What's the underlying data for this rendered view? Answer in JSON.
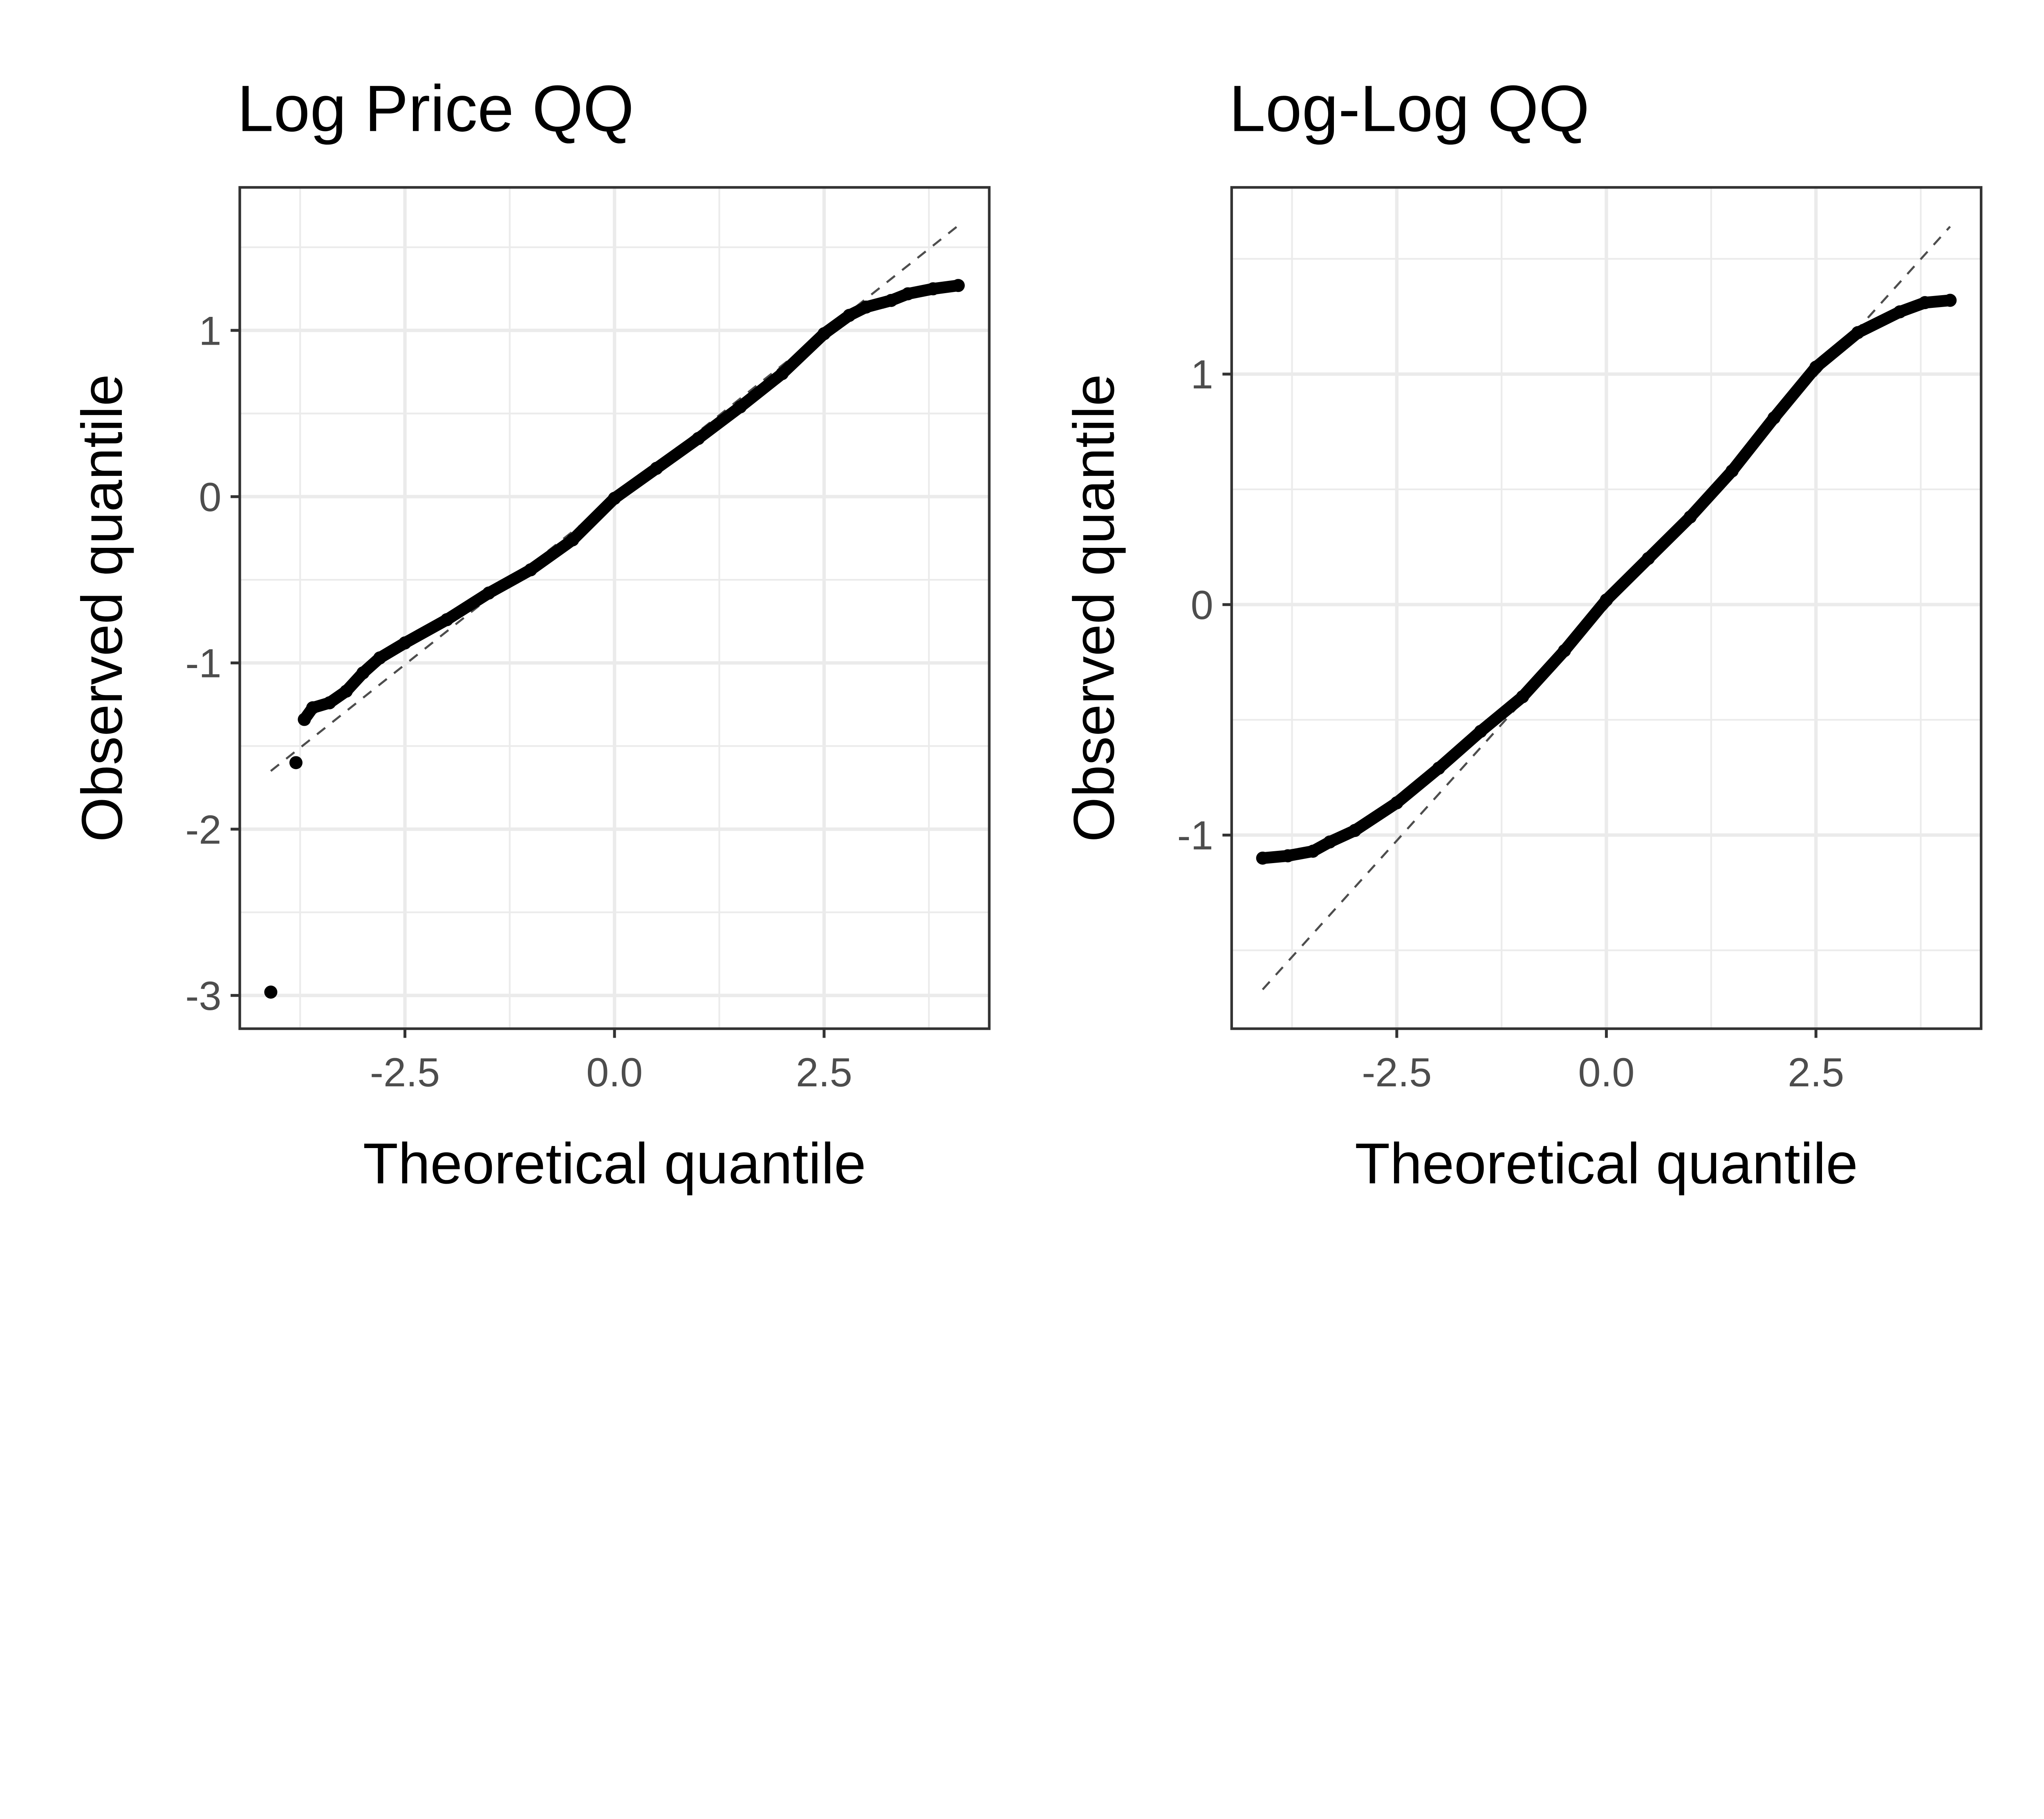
{
  "chart_data": [
    {
      "type": "scatter",
      "title": "Log Price QQ",
      "xlabel": "Theoretical quantile",
      "ylabel": "Observed quantile",
      "xlim": [
        -4.47,
        4.47
      ],
      "ylim": [
        -3.2,
        1.86
      ],
      "xticks": [
        -2.5,
        0.0,
        2.5
      ],
      "xtick_labels": [
        "-2.5",
        "0.0",
        "2.5"
      ],
      "yticks": [
        -3,
        -2,
        -1,
        0,
        1
      ],
      "ytick_labels": [
        "-3",
        "-2",
        "-1",
        "0",
        "1"
      ],
      "grid": true,
      "reference_line": {
        "style": "dashed",
        "color": "#4d4d4d",
        "x": [
          -4.1,
          4.1
        ],
        "y": [
          -1.65,
          1.63
        ]
      },
      "point_color": "#000000",
      "points": [
        [
          -4.1,
          -2.98
        ],
        [
          -3.8,
          -1.6
        ],
        [
          -3.7,
          -1.34
        ],
        [
          -3.6,
          -1.27
        ],
        [
          -3.4,
          -1.24
        ],
        [
          -3.2,
          -1.17
        ],
        [
          -3.0,
          -1.06
        ],
        [
          -2.8,
          -0.97
        ],
        [
          -2.5,
          -0.88
        ],
        [
          -2.0,
          -0.74
        ],
        [
          -1.5,
          -0.58
        ],
        [
          -1.0,
          -0.44
        ],
        [
          -0.5,
          -0.26
        ],
        [
          0.0,
          -0.01
        ],
        [
          0.5,
          0.17
        ],
        [
          1.0,
          0.35
        ],
        [
          1.5,
          0.54
        ],
        [
          2.0,
          0.74
        ],
        [
          2.5,
          0.98
        ],
        [
          2.8,
          1.09
        ],
        [
          3.0,
          1.14
        ],
        [
          3.3,
          1.18
        ],
        [
          3.5,
          1.22
        ],
        [
          3.8,
          1.25
        ],
        [
          4.1,
          1.27
        ]
      ]
    },
    {
      "type": "scatter",
      "title": "Log-Log QQ",
      "xlabel": "Theoretical quantile",
      "ylabel": "Observed quantile",
      "xlim": [
        -4.47,
        4.47
      ],
      "ylim": [
        -1.84,
        1.81
      ],
      "xticks": [
        -2.5,
        0.0,
        2.5
      ],
      "xtick_labels": [
        "-2.5",
        "0.0",
        "2.5"
      ],
      "yticks": [
        -1,
        0,
        1
      ],
      "ytick_labels": [
        "-1",
        "0",
        "1"
      ],
      "grid": true,
      "reference_line": {
        "style": "dashed",
        "color": "#4d4d4d",
        "x": [
          -4.1,
          4.1
        ],
        "y": [
          -1.67,
          1.64
        ]
      },
      "point_color": "#000000",
      "points": [
        [
          -4.1,
          -1.1
        ],
        [
          -3.8,
          -1.09
        ],
        [
          -3.5,
          -1.07
        ],
        [
          -3.3,
          -1.03
        ],
        [
          -3.0,
          -0.98
        ],
        [
          -2.5,
          -0.86
        ],
        [
          -2.0,
          -0.71
        ],
        [
          -1.5,
          -0.55
        ],
        [
          -1.0,
          -0.4
        ],
        [
          -0.5,
          -0.2
        ],
        [
          0.0,
          0.02
        ],
        [
          0.5,
          0.2
        ],
        [
          1.0,
          0.38
        ],
        [
          1.5,
          0.58
        ],
        [
          2.0,
          0.81
        ],
        [
          2.5,
          1.03
        ],
        [
          3.0,
          1.18
        ],
        [
          3.5,
          1.27
        ],
        [
          3.8,
          1.31
        ],
        [
          4.1,
          1.32
        ]
      ]
    }
  ]
}
